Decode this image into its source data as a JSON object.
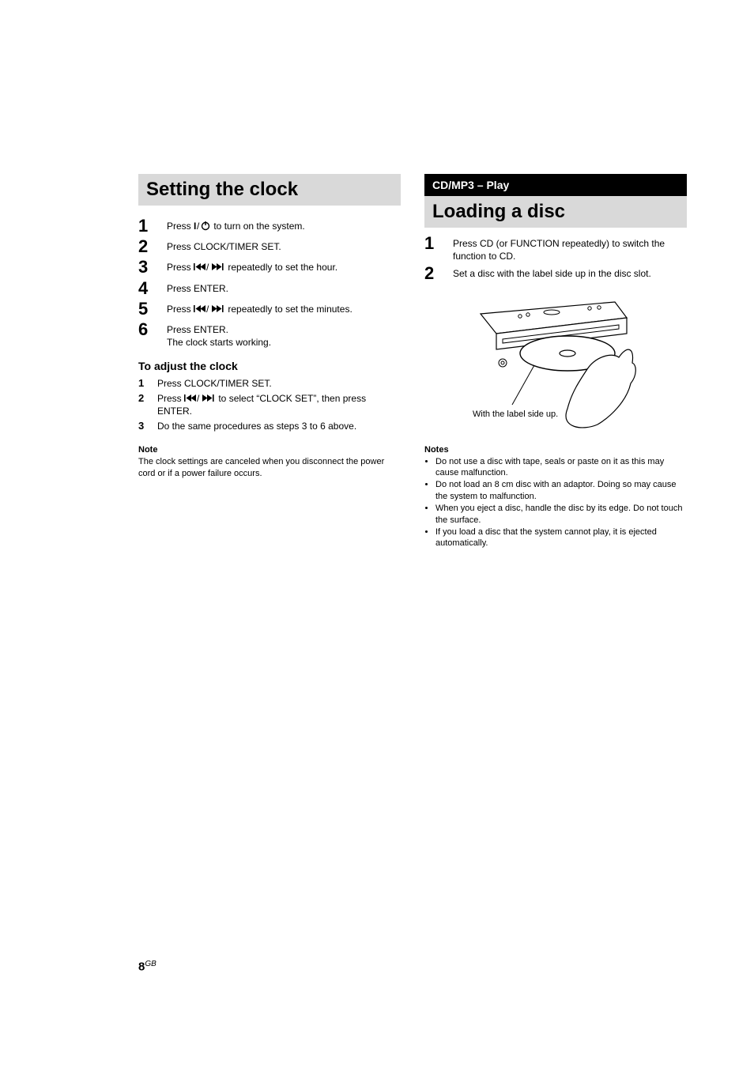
{
  "left": {
    "title": "Setting the clock",
    "steps": [
      {
        "n": "1",
        "pre": "Press ",
        "icon": "power",
        "post": " to turn on the system."
      },
      {
        "n": "2",
        "text": "Press CLOCK/TIMER SET."
      },
      {
        "n": "3",
        "pre": "Press ",
        "icon": "prevnext",
        "post": " repeatedly to set the hour."
      },
      {
        "n": "4",
        "text": "Press ENTER."
      },
      {
        "n": "5",
        "pre": "Press ",
        "icon": "prevnext",
        "post": " repeatedly to set the minutes."
      },
      {
        "n": "6",
        "text": "Press ENTER.",
        "extra": "The clock starts working."
      }
    ],
    "adjust_title": "To adjust the clock",
    "adjust_steps": [
      {
        "n": "1",
        "text": "Press CLOCK/TIMER SET."
      },
      {
        "n": "2",
        "pre": "Press ",
        "icon": "prevnext",
        "post": " to select “CLOCK SET”, then press ENTER."
      },
      {
        "n": "3",
        "text": "Do the same procedures as steps 3 to 6 above."
      }
    ],
    "note_head": "Note",
    "note_text": "The clock settings are canceled when you disconnect the power cord or if a power failure occurs."
  },
  "right": {
    "chapter": "CD/MP3 – Play",
    "title": "Loading a disc",
    "steps": [
      {
        "n": "1",
        "text": "Press CD (or FUNCTION repeatedly) to switch the function to CD."
      },
      {
        "n": "2",
        "text": "Set a disc with the label side up in the disc slot."
      }
    ],
    "notes_head": "Notes",
    "notes": [
      "Do not use a disc with tape, seals or paste on it as this may cause malfunction.",
      "Do not load an 8 cm disc with an adaptor. Doing so may cause the system to malfunction.",
      "When you eject a disc, handle the disc by its edge. Do not touch the surface.",
      "If you load a disc that the system cannot play, it is ejected automatically."
    ]
  },
  "illus": {
    "label": "With the label side up."
  },
  "footer": {
    "page": "8",
    "region": "GB"
  },
  "colors": {
    "grey_bar": "#d9d9d9",
    "black": "#000000",
    "white": "#ffffff"
  }
}
